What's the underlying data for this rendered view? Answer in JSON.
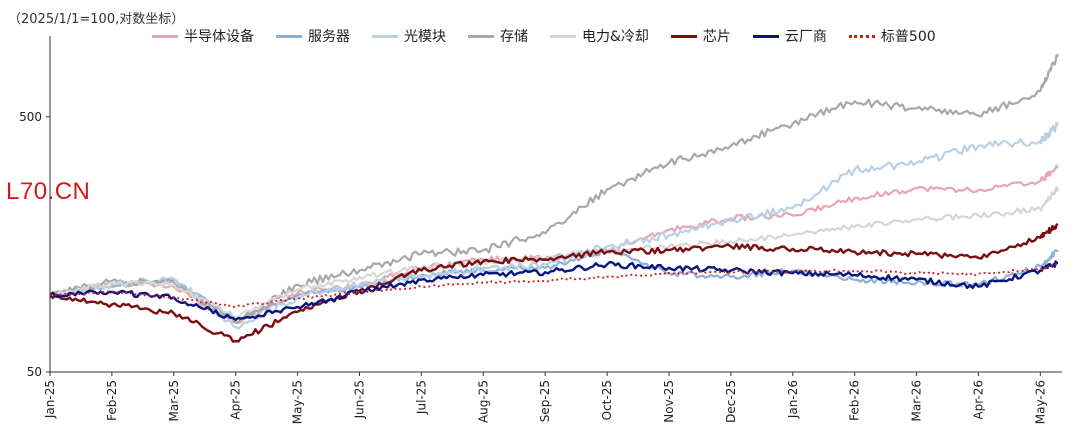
{
  "caption": "（2025/1/1=100,对数坐标）",
  "watermark": "L70.CN",
  "chart_data": {
    "type": "line",
    "y_scale": "log",
    "ylim": [
      50,
      1000
    ],
    "y_ticks": [
      50,
      500
    ],
    "grid": false,
    "legend_position": "top",
    "x_ticks": [
      "Jan-25",
      "Feb-25",
      "Mar-25",
      "Apr-25",
      "May-25",
      "Jun-25",
      "Jul-25",
      "Aug-25",
      "Sep-25",
      "Oct-25",
      "Nov-25",
      "Dec-25",
      "Jan-26",
      "Feb-26",
      "Mar-26",
      "Apr-26",
      "May-26"
    ],
    "x": [
      "Jan-25",
      "Feb-25",
      "Mar-25",
      "Apr-25",
      "May-25",
      "Jun-25",
      "Jul-25",
      "Aug-25",
      "Sep-25",
      "Oct-25",
      "Nov-25",
      "Dec-25",
      "Jan-26",
      "Feb-26",
      "Mar-26",
      "Apr-26",
      "May-26",
      "May-26 end"
    ],
    "series": [
      {
        "name": "半导体设备",
        "color": "#e6a8ad",
        "dash": "solid",
        "values": [
          100,
          112,
          108,
          78,
          102,
          110,
          128,
          138,
          140,
          148,
          180,
          200,
          205,
          240,
          262,
          258,
          280,
          320
        ]
      },
      {
        "name": "服务器",
        "color": "#8fb0d6",
        "dash": "solid",
        "values": [
          100,
          108,
          115,
          80,
          100,
          108,
          120,
          125,
          128,
          150,
          122,
          118,
          125,
          115,
          112,
          110,
          130,
          150
        ]
      },
      {
        "name": "光模块",
        "color": "#b8d0e8",
        "dash": "solid",
        "values": [
          100,
          110,
          116,
          75,
          98,
          110,
          118,
          128,
          132,
          155,
          172,
          195,
          220,
          310,
          330,
          385,
          402,
          462
        ]
      },
      {
        "name": "存储",
        "color": "#a8a8a8",
        "dash": "solid",
        "values": [
          100,
          114,
          112,
          78,
          110,
          125,
          145,
          150,
          175,
          260,
          330,
          385,
          470,
          575,
          540,
          505,
          630,
          880
        ]
      },
      {
        "name": "电力&冷却",
        "color": "#d6d6d6",
        "dash": "solid",
        "values": [
          100,
          112,
          110,
          82,
          105,
          118,
          128,
          135,
          140,
          150,
          155,
          162,
          172,
          185,
          198,
          205,
          218,
          265
        ]
      },
      {
        "name": "芯片",
        "color": "#7a0f0f",
        "dash": "solid",
        "values": [
          100,
          92,
          85,
          66,
          86,
          104,
          125,
          136,
          138,
          148,
          150,
          155,
          152,
          148,
          145,
          140,
          168,
          190
        ]
      },
      {
        "name": "云厂商",
        "color": "#0a1680",
        "dash": "solid",
        "values": [
          100,
          103,
          98,
          80,
          90,
          103,
          115,
          120,
          123,
          132,
          128,
          125,
          122,
          120,
          115,
          108,
          125,
          134
        ]
      },
      {
        "name": "标普500",
        "color": "#d21a1a",
        "dash": "dotted",
        "values": [
          100,
          103,
          98,
          90,
          97,
          103,
          108,
          112,
          114,
          118,
          122,
          123,
          124,
          125,
          122,
          121,
          127,
          133
        ]
      }
    ]
  }
}
